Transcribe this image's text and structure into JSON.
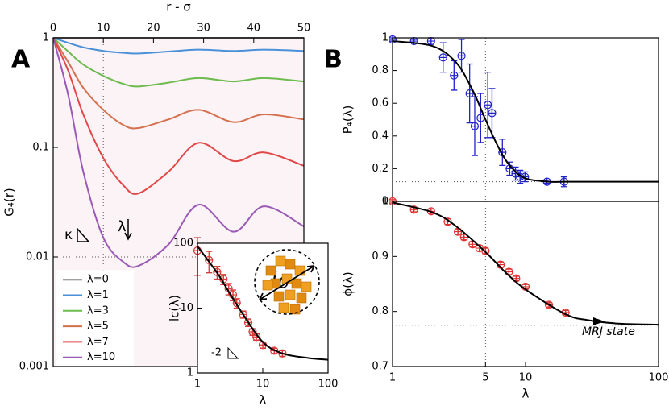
{
  "chart_data": [
    {
      "type": "line",
      "panel_label": "A",
      "x_label": "r - σ",
      "y_label": "G₄(r)",
      "x": [
        0,
        3,
        6,
        10,
        14,
        17,
        23,
        29,
        36,
        42,
        50
      ],
      "xlim": [
        0,
        50
      ],
      "xticks": [
        0,
        10,
        20,
        30,
        40,
        50
      ],
      "x_axis": "top",
      "ylim": [
        0.001,
        1
      ],
      "yscale": "log",
      "yticks": [
        1,
        0.1,
        0.01,
        0.001
      ],
      "legend": "lower left",
      "reference_lines": {
        "x": [
          10
        ],
        "y": [
          0.01
        ]
      },
      "annotations": [
        "κ",
        "λ"
      ],
      "series": [
        {
          "name": "λ=0",
          "color": "#808080",
          "values": [
            1,
            1,
            1,
            1,
            1,
            1,
            1,
            1,
            1,
            1,
            1
          ]
        },
        {
          "name": "λ=1",
          "color": "#4a90d9",
          "values": [
            1,
            0.9,
            0.82,
            0.76,
            0.73,
            0.72,
            0.75,
            0.78,
            0.76,
            0.78,
            0.76
          ]
        },
        {
          "name": "λ=3",
          "color": "#6dbb4e",
          "values": [
            1,
            0.75,
            0.57,
            0.45,
            0.38,
            0.36,
            0.39,
            0.43,
            0.4,
            0.43,
            0.4
          ]
        },
        {
          "name": "λ=5",
          "color": "#d4704e",
          "values": [
            1,
            0.6,
            0.35,
            0.22,
            0.16,
            0.15,
            0.18,
            0.22,
            0.17,
            0.2,
            0.18
          ]
        },
        {
          "name": "λ=7",
          "color": "#e04848",
          "values": [
            1,
            0.5,
            0.2,
            0.08,
            0.045,
            0.038,
            0.06,
            0.11,
            0.075,
            0.09,
            0.068
          ]
        },
        {
          "name": "λ=10",
          "color": "#9b59b6",
          "values": [
            1,
            0.3,
            0.06,
            0.015,
            0.009,
            0.0083,
            0.013,
            0.03,
            0.017,
            0.029,
            0.019
          ]
        }
      ]
    },
    {
      "type": "scatter",
      "x_label": "λ",
      "y_label": "lc(λ)",
      "xscale": "log",
      "xlim": [
        1,
        100
      ],
      "xticks": [
        1,
        10,
        100
      ],
      "yscale": "log",
      "ylim": [
        1,
        100
      ],
      "yticks": [
        1,
        10,
        100
      ],
      "annotations": [
        "-2",
        "lc"
      ],
      "series": [
        {
          "style": "markers",
          "color": "#d93a3a",
          "x": [
            1,
            1.5,
            2,
            2.5,
            3,
            3.5,
            4,
            5,
            6,
            7,
            8,
            10,
            15,
            20
          ],
          "values": [
            77,
            55,
            36,
            28,
            20,
            16,
            12,
            8,
            6,
            4.3,
            3.6,
            2.7,
            2.2,
            2.0
          ],
          "errors": [
            45,
            20,
            8,
            5,
            4,
            3,
            2,
            1,
            0.8,
            0.5,
            0.4,
            0.3,
            0.2,
            0.2
          ]
        },
        {
          "style": "line",
          "color": "#000000",
          "x": [
            1,
            2,
            3,
            5,
            10,
            20,
            50,
            100
          ],
          "values": [
            90,
            35,
            18,
            8,
            3,
            2,
            1.7,
            1.6
          ]
        }
      ]
    },
    {
      "type": "scatter",
      "panel_label": "B",
      "y_label": "P₄(λ)",
      "xscale": "log",
      "xlim": [
        1,
        100
      ],
      "ylim": [
        0,
        1
      ],
      "yticks": [
        0,
        0.2,
        0.4,
        0.6,
        0.8,
        1
      ],
      "reference_lines": {
        "x": [
          5
        ],
        "y": [
          0.12
        ]
      },
      "series": [
        {
          "style": "markers",
          "color": "#2222cc",
          "x": [
            1,
            1.45,
            1.95,
            2.4,
            2.9,
            3.3,
            3.8,
            4.15,
            4.6,
            5.2,
            5.6,
            6.7,
            7.6,
            8.4,
            9.1,
            9.9,
            14.5,
            19.5
          ],
          "values": [
            0.99,
            0.98,
            0.98,
            0.88,
            0.77,
            0.89,
            0.66,
            0.46,
            0.51,
            0.59,
            0.54,
            0.3,
            0.2,
            0.17,
            0.15,
            0.15,
            0.12,
            0.12
          ],
          "errors": [
            0.01,
            0.01,
            0.02,
            0.09,
            0.09,
            0.1,
            0.18,
            0.18,
            0.15,
            0.2,
            0.15,
            0.08,
            0.04,
            0.04,
            0.04,
            0.03,
            0.01,
            0.03
          ]
        },
        {
          "style": "line",
          "color": "#000000",
          "x": [
            1,
            2,
            3,
            4,
            5,
            6,
            7,
            8,
            10,
            15,
            20,
            50,
            100
          ],
          "values": [
            0.98,
            0.95,
            0.85,
            0.68,
            0.5,
            0.36,
            0.26,
            0.2,
            0.14,
            0.12,
            0.12,
            0.12,
            0.12
          ]
        }
      ]
    },
    {
      "type": "scatter",
      "x_label": "λ",
      "y_label": "ϕ(λ)",
      "xscale": "log",
      "xlim": [
        1,
        100
      ],
      "xticks": [
        1,
        5,
        10,
        100
      ],
      "ylim": [
        0.7,
        1
      ],
      "yticks": [
        0.7,
        0.8,
        0.9,
        1
      ],
      "reference_lines": {
        "x": [
          5
        ],
        "y": [
          0.775
        ]
      },
      "annotations": [
        "MRJ state"
      ],
      "series": [
        {
          "style": "markers",
          "color": "#e03030",
          "x": [
            1,
            1.45,
            1.95,
            2.6,
            3.1,
            3.45,
            4,
            4.5,
            5,
            6.5,
            7.5,
            8.5,
            10,
            15,
            20
          ],
          "values": [
            1.0,
            0.985,
            0.982,
            0.963,
            0.945,
            0.935,
            0.922,
            0.915,
            0.91,
            0.885,
            0.872,
            0.86,
            0.845,
            0.812,
            0.798
          ],
          "errors": [
            0.003,
            0.004,
            0.004,
            0.005,
            0.005,
            0.005,
            0.005,
            0.005,
            0.005,
            0.005,
            0.005,
            0.004,
            0.004,
            0.004,
            0.004
          ]
        },
        {
          "style": "line",
          "color": "#000000",
          "x": [
            1,
            2,
            3,
            5,
            7,
            10,
            20,
            30,
            50,
            100
          ],
          "values": [
            0.998,
            0.98,
            0.955,
            0.908,
            0.872,
            0.84,
            0.795,
            0.784,
            0.778,
            0.776
          ]
        }
      ]
    }
  ]
}
